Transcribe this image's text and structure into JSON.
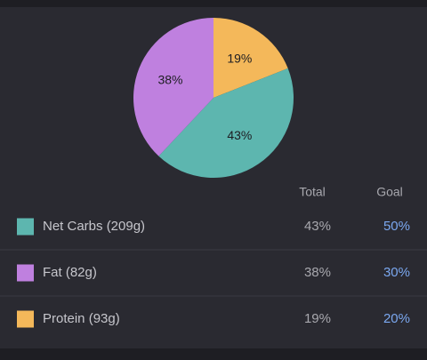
{
  "chart_data": {
    "type": "pie",
    "values": [
      19,
      43,
      38
    ],
    "value_labels": [
      "19%",
      "43%",
      "38%"
    ],
    "colors": [
      "#f4b85a",
      "#5db6af",
      "#bf80df"
    ]
  },
  "table": {
    "header": [
      "Total",
      "Goal"
    ],
    "rows": [
      {
        "label": "Net Carbs (209g)",
        "total": "43%",
        "goal": "50%",
        "color": "#5db6af"
      },
      {
        "label": "Fat (82g)",
        "total": "38%",
        "goal": "30%",
        "color": "#bf80df"
      },
      {
        "label": "Protein (93g)",
        "total": "19%",
        "goal": "20%",
        "color": "#f4b85a"
      }
    ]
  }
}
